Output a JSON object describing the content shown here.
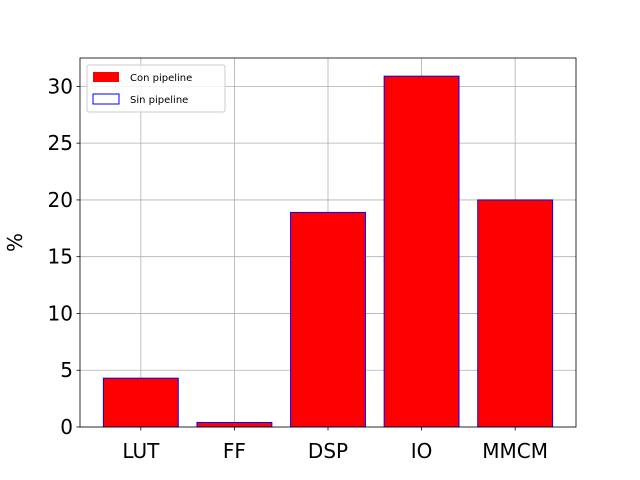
{
  "chart_data": {
    "type": "bar",
    "categories": [
      "LUT",
      "FF",
      "DSP",
      "IO",
      "MMCM"
    ],
    "series": [
      {
        "name": "Con pipeline",
        "values": [
          4.3,
          0.4,
          18.9,
          30.9,
          20.0
        ],
        "color": "#ff0000",
        "style": "filled"
      },
      {
        "name": "Sin pipeline",
        "values": [
          4.3,
          0.4,
          18.9,
          30.9,
          20.0
        ],
        "color": "#0000ff",
        "style": "outline"
      }
    ],
    "xlabel": "",
    "ylabel": "%",
    "ylim": [
      0,
      32.5
    ],
    "yticks": [
      0,
      5,
      10,
      15,
      20,
      25,
      30
    ],
    "grid": true,
    "legend_position": "top-left"
  }
}
